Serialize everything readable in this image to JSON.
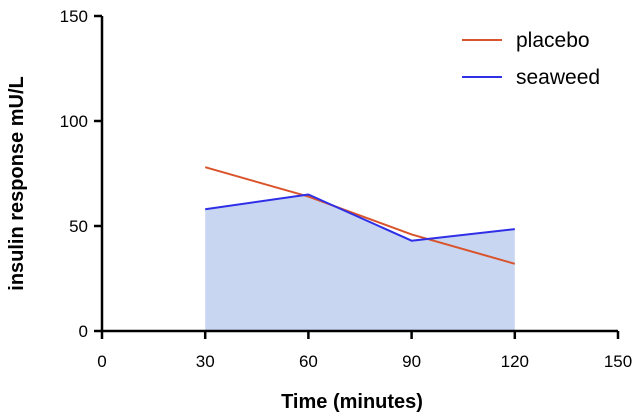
{
  "chart_data": {
    "type": "line",
    "title": "",
    "xlabel": "Time (minutes)",
    "ylabel": "insulin response mU/L",
    "xlim": [
      0,
      150
    ],
    "ylim": [
      0,
      150
    ],
    "xticks": [
      0,
      30,
      60,
      90,
      120,
      150
    ],
    "yticks": [
      0,
      50,
      100,
      150
    ],
    "grid": false,
    "legend_position": "top-right",
    "x": [
      30,
      60,
      90,
      120
    ],
    "series": [
      {
        "name": "placebo",
        "values": [
          78,
          64,
          46,
          32
        ],
        "color": "#d9532b",
        "fill": false
      },
      {
        "name": "seaweed",
        "values": [
          58,
          65,
          43,
          48.5
        ],
        "color": "#2f2fe8",
        "fill": true,
        "fill_color": "#c8d6f2"
      }
    ]
  }
}
